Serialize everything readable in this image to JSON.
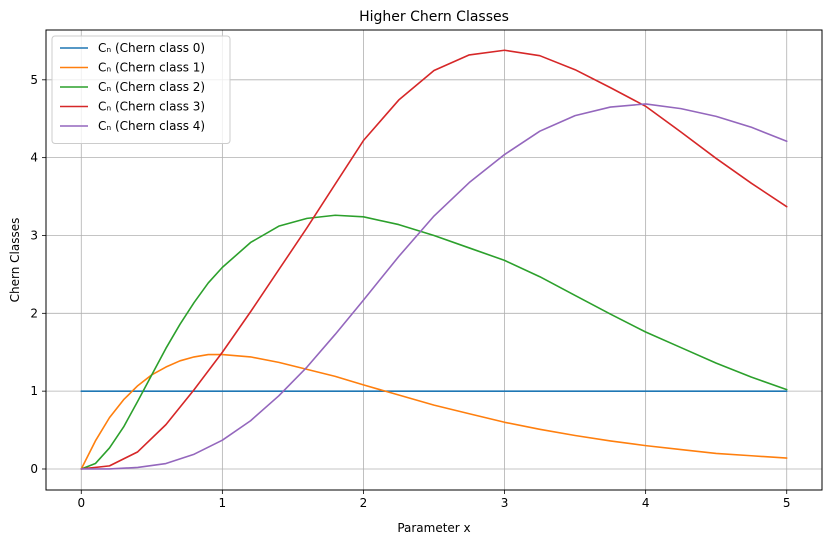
{
  "chart_data": {
    "type": "line",
    "title": "Higher Chern Classes",
    "xlabel": "Parameter x",
    "ylabel": "Chern Classes",
    "xlim": [
      -0.25,
      5.25
    ],
    "ylim": [
      -0.27,
      5.64
    ],
    "xticks": [
      0,
      1,
      2,
      3,
      4,
      5
    ],
    "yticks": [
      0,
      1,
      2,
      3,
      4,
      5
    ],
    "grid": true,
    "legend_position": "top-left",
    "series": [
      {
        "name": "Cₙ (Chern class 0)",
        "color": "#1f77b4",
        "x": [
          0,
          0.5,
          1,
          1.5,
          2,
          2.5,
          3,
          3.5,
          4,
          4.5,
          5
        ],
        "y": [
          1,
          1,
          1,
          1,
          1,
          1,
          1,
          1,
          1,
          1,
          1
        ]
      },
      {
        "name": "Cₙ (Chern class 1)",
        "color": "#ff7f0e",
        "x": [
          0,
          0.1,
          0.2,
          0.3,
          0.4,
          0.5,
          0.6,
          0.7,
          0.8,
          0.9,
          1,
          1.2,
          1.4,
          1.6,
          1.8,
          2,
          2.25,
          2.5,
          2.75,
          3,
          3.25,
          3.5,
          3.75,
          4,
          4.25,
          4.5,
          4.75,
          5
        ],
        "y": [
          0,
          0.36,
          0.66,
          0.89,
          1.07,
          1.21,
          1.31,
          1.39,
          1.44,
          1.47,
          1.47,
          1.44,
          1.37,
          1.28,
          1.19,
          1.08,
          0.95,
          0.82,
          0.71,
          0.6,
          0.51,
          0.43,
          0.36,
          0.3,
          0.25,
          0.2,
          0.17,
          0.14
        ]
      },
      {
        "name": "Cₙ (Chern class 2)",
        "color": "#2ca02c",
        "x": [
          0,
          0.1,
          0.2,
          0.3,
          0.4,
          0.5,
          0.6,
          0.7,
          0.8,
          0.9,
          1,
          1.2,
          1.4,
          1.6,
          1.8,
          2,
          2.25,
          2.5,
          2.75,
          3,
          3.25,
          3.5,
          3.75,
          4,
          4.25,
          4.5,
          4.75,
          5
        ],
        "y": [
          0,
          0.07,
          0.27,
          0.54,
          0.87,
          1.21,
          1.55,
          1.86,
          2.14,
          2.39,
          2.59,
          2.91,
          3.12,
          3.22,
          3.26,
          3.24,
          3.14,
          3.0,
          2.84,
          2.68,
          2.47,
          2.23,
          1.99,
          1.76,
          1.56,
          1.36,
          1.18,
          1.02
        ]
      },
      {
        "name": "Cₙ (Chern class 3)",
        "color": "#d62728",
        "x": [
          0,
          0.2,
          0.4,
          0.6,
          0.8,
          1,
          1.2,
          1.4,
          1.6,
          1.8,
          2,
          2.25,
          2.5,
          2.75,
          3,
          3.25,
          3.5,
          3.75,
          4,
          4.25,
          4.5,
          4.75,
          5
        ],
        "y": [
          0,
          0.04,
          0.22,
          0.57,
          1.02,
          1.5,
          2.02,
          2.56,
          3.1,
          3.66,
          4.22,
          4.74,
          5.12,
          5.32,
          5.38,
          5.31,
          5.13,
          4.9,
          4.66,
          4.33,
          3.99,
          3.67,
          3.37
        ]
      },
      {
        "name": "Cₙ (Chern class 4)",
        "color": "#9467bd",
        "x": [
          0,
          0.2,
          0.4,
          0.6,
          0.8,
          1,
          1.2,
          1.4,
          1.6,
          1.8,
          2,
          2.25,
          2.5,
          2.75,
          3,
          3.25,
          3.5,
          3.75,
          4,
          4.25,
          4.5,
          4.75,
          5
        ],
        "y": [
          0,
          0.0,
          0.02,
          0.07,
          0.19,
          0.37,
          0.62,
          0.94,
          1.31,
          1.73,
          2.17,
          2.73,
          3.25,
          3.68,
          4.04,
          4.34,
          4.54,
          4.65,
          4.69,
          4.63,
          4.53,
          4.39,
          4.21
        ]
      }
    ]
  }
}
